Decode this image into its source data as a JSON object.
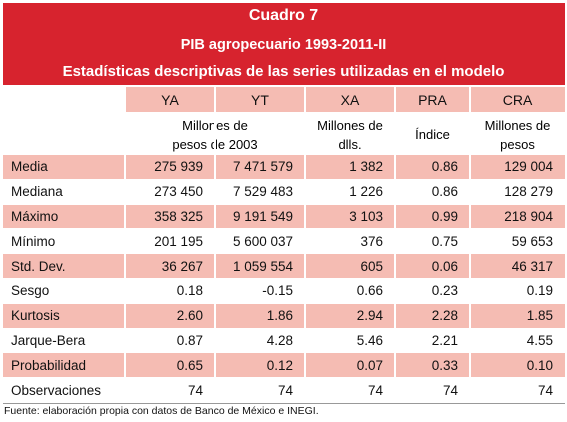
{
  "header": {
    "number": "Cuadro 7",
    "title": "PIB agropecuario 1993-2011-II",
    "subtitle": "Estadísticas descriptivas de las series utilizadas en el modelo"
  },
  "table": {
    "columns": [
      "YA",
      "YT",
      "XA",
      "PRA",
      "CRA"
    ],
    "units": [
      "Millones de pesos de 2003",
      "Millones de dlls.",
      "Índice",
      "Millones de pesos"
    ],
    "rows": [
      [
        "Media",
        "275 939",
        "7 471 579",
        "1 382",
        "0.86",
        "129 004"
      ],
      [
        "Mediana",
        "273 450",
        "7 529 483",
        "1 226",
        "0.86",
        "128 279"
      ],
      [
        "Máximo",
        "358 325",
        "9 191 549",
        "3 103",
        "0.99",
        "218 904"
      ],
      [
        "Mínimo",
        "201 195",
        "5 600 037",
        "376",
        "0.75",
        "59 653"
      ],
      [
        "Std. Dev.",
        "36 267",
        "1 059 554",
        "605",
        "0.06",
        "46 317"
      ],
      [
        "Sesgo",
        "0.18",
        "-0.15",
        "0.66",
        "0.23",
        "0.19"
      ],
      [
        "Kurtosis",
        "2.60",
        "1.86",
        "2.94",
        "2.28",
        "1.85"
      ],
      [
        "Jarque-Bera",
        "0.87",
        "4.28",
        "5.46",
        "2.21",
        "4.55"
      ],
      [
        "Probabilidad",
        "0.65",
        "0.12",
        "0.07",
        "0.33",
        "0.10"
      ],
      [
        "Observaciones",
        "74",
        "74",
        "74",
        "74",
        "74"
      ]
    ]
  },
  "footer": {
    "source": "Fuente: elaboración propia con datos de Banco de México e INEGI."
  }
}
